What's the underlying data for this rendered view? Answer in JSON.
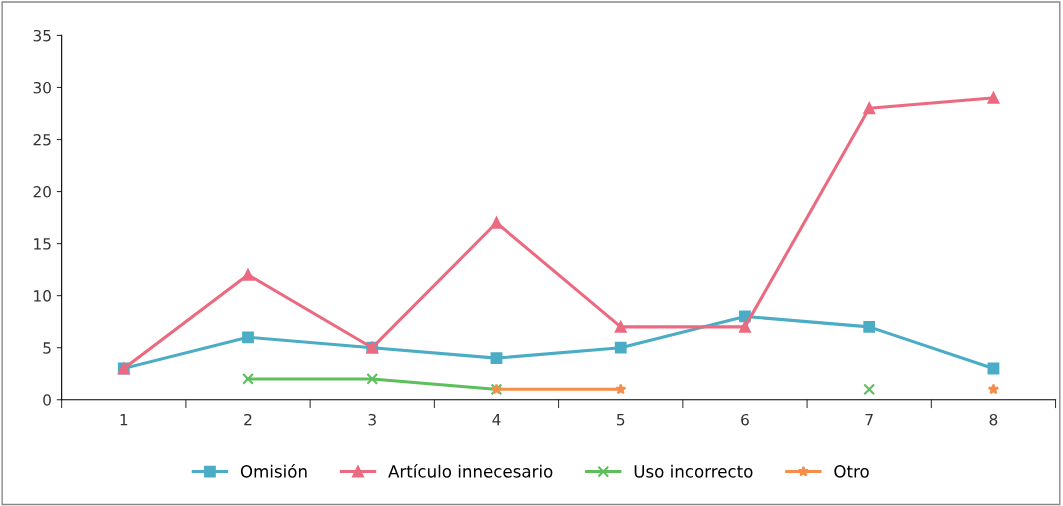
{
  "chart_data": {
    "type": "line",
    "categories": [
      "1",
      "2",
      "3",
      "4",
      "5",
      "6",
      "7",
      "8"
    ],
    "series": [
      {
        "name": "Omisión",
        "color": "#4bacc6",
        "marker": "square",
        "values": [
          3,
          6,
          5,
          4,
          5,
          8,
          7,
          3
        ]
      },
      {
        "name": "Artículo innecesario",
        "color": "#ec6a80",
        "marker": "triangle",
        "values": [
          3,
          12,
          5,
          17,
          7,
          7,
          28,
          29
        ]
      },
      {
        "name": "Uso incorrecto",
        "color": "#5cbf5c",
        "marker": "cross",
        "values": [
          null,
          2,
          2,
          1,
          null,
          null,
          1,
          null
        ]
      },
      {
        "name": "Otro",
        "color": "#f58d4b",
        "marker": "star",
        "values": [
          null,
          null,
          null,
          1,
          1,
          null,
          null,
          1
        ]
      }
    ],
    "ylim": [
      0,
      35
    ],
    "yticks": [
      0,
      5,
      10,
      15,
      20,
      25,
      30,
      35
    ],
    "grid": false,
    "legend": "bottom"
  }
}
